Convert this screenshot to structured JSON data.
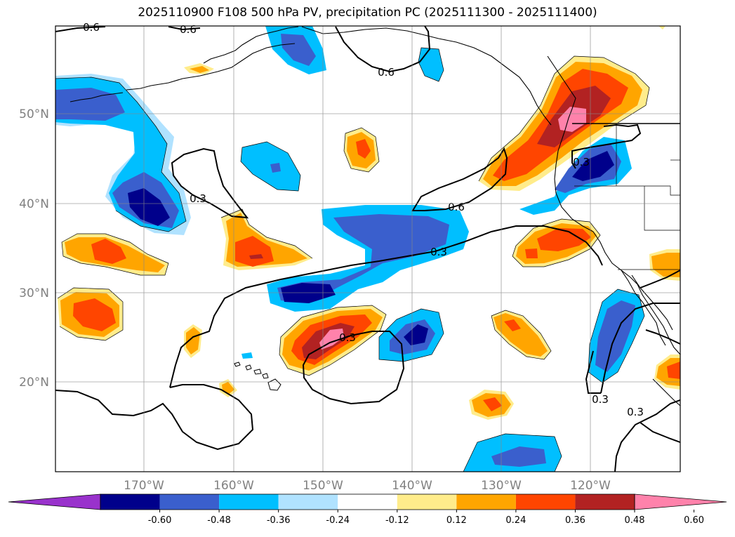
{
  "title": "2025110900 F108 500 hPa PV, precipitation PC (2025111300 - 2025111400)",
  "lat_labels": [
    "50°N",
    "40°N",
    "30°N",
    "20°N"
  ],
  "lon_labels": [
    "170°W",
    "160°W",
    "150°W",
    "140°W",
    "130°W",
    "120°W"
  ],
  "contour_labels": [
    "0.6",
    "0.6",
    "0.6",
    "0.3",
    "0.6",
    "0.3",
    "0.3",
    "0.3",
    "0.3",
    "0.3"
  ],
  "colorbar": {
    "ticks": [
      "-0.60",
      "-0.48",
      "-0.36",
      "-0.24",
      "-0.12",
      "0.12",
      "0.24",
      "0.36",
      "0.48",
      "0.60"
    ],
    "colors": [
      "#9932cc",
      "#00008b",
      "#3a5fcd",
      "#00bfff",
      "#b0e2ff",
      "#ffffff",
      "#ffec8b",
      "#ffa500",
      "#ff4500",
      "#b22222",
      "#ff82ab"
    ]
  },
  "colors": {
    "neg_strong": "#00008b",
    "neg_mid": "#3a5fcd",
    "neg_light": "#00bfff",
    "neg_pale": "#b0e2ff",
    "pos_pale": "#ffec8b",
    "pos_light": "#ffa500",
    "pos_mid": "#ff4500",
    "pos_strong": "#b22222",
    "pos_max": "#ff82ab"
  }
}
